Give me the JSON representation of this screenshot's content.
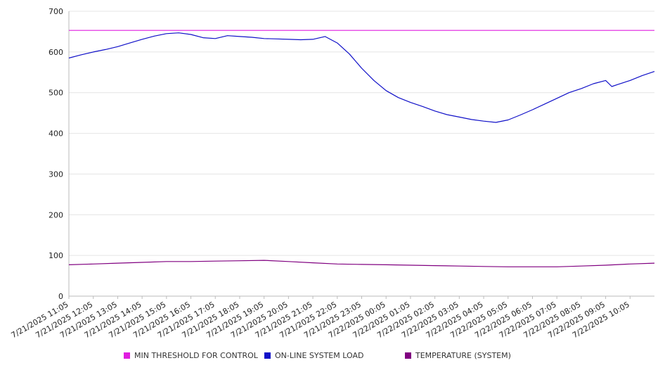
{
  "chart_data": {
    "type": "line",
    "ylim": [
      0,
      700
    ],
    "yticks": [
      0,
      100,
      200,
      300,
      400,
      500,
      600,
      700
    ],
    "grid": true,
    "legend_position": "bottom",
    "x_ticks": [
      "7/21/2025 11:05",
      "7/21/2025 12:05",
      "7/21/2025 13:05",
      "7/21/2025 14:05",
      "7/21/2025 15:05",
      "7/21/2025 16:05",
      "7/21/2025 17:05",
      "7/21/2025 18:05",
      "7/21/2025 19:05",
      "7/21/2025 20:05",
      "7/21/2025 21:05",
      "7/21/2025 22:05",
      "7/21/2025 23:05",
      "7/22/2025 00:05",
      "7/22/2025 01:05",
      "7/22/2025 02:05",
      "7/22/2025 03:05",
      "7/22/2025 04:05",
      "7/22/2025 05:05",
      "7/22/2025 06:05",
      "7/22/2025 07:05",
      "7/22/2025 08:05",
      "7/22/2025 09:05",
      "7/22/2025 10:05"
    ],
    "series": [
      {
        "name": "MIN THRESHOLD FOR CONTROL",
        "color": "#e01ee0",
        "points": [
          [
            "7/21/2025 11:05",
            653
          ],
          [
            "7/22/2025 11:05",
            653
          ]
        ]
      },
      {
        "name": "ON-LINE SYSTEM LOAD",
        "color": "#1010c8",
        "points": [
          [
            "7/21/2025 11:05",
            585
          ],
          [
            "7/21/2025 11:35",
            593
          ],
          [
            "7/21/2025 12:05",
            600
          ],
          [
            "7/21/2025 12:35",
            606
          ],
          [
            "7/21/2025 13:05",
            613
          ],
          [
            "7/21/2025 13:35",
            622
          ],
          [
            "7/21/2025 14:05",
            631
          ],
          [
            "7/21/2025 14:35",
            639
          ],
          [
            "7/21/2025 15:05",
            645
          ],
          [
            "7/21/2025 15:35",
            647
          ],
          [
            "7/21/2025 16:05",
            643
          ],
          [
            "7/21/2025 16:35",
            635
          ],
          [
            "7/21/2025 17:05",
            633
          ],
          [
            "7/21/2025 17:35",
            640
          ],
          [
            "7/21/2025 18:05",
            638
          ],
          [
            "7/21/2025 18:35",
            636
          ],
          [
            "7/21/2025 19:05",
            633
          ],
          [
            "7/21/2025 19:35",
            632
          ],
          [
            "7/21/2025 20:05",
            631
          ],
          [
            "7/21/2025 20:35",
            630
          ],
          [
            "7/21/2025 21:05",
            631
          ],
          [
            "7/21/2025 21:35",
            638
          ],
          [
            "7/21/2025 22:05",
            622
          ],
          [
            "7/21/2025 22:35",
            595
          ],
          [
            "7/21/2025 23:05",
            560
          ],
          [
            "7/21/2025 23:35",
            530
          ],
          [
            "7/22/2025 00:05",
            505
          ],
          [
            "7/22/2025 00:35",
            488
          ],
          [
            "7/22/2025 01:05",
            476
          ],
          [
            "7/22/2025 01:35",
            466
          ],
          [
            "7/22/2025 02:05",
            455
          ],
          [
            "7/22/2025 02:35",
            446
          ],
          [
            "7/22/2025 03:05",
            440
          ],
          [
            "7/22/2025 03:35",
            434
          ],
          [
            "7/22/2025 04:05",
            430
          ],
          [
            "7/22/2025 04:35",
            427
          ],
          [
            "7/22/2025 05:05",
            433
          ],
          [
            "7/22/2025 05:35",
            445
          ],
          [
            "7/22/2025 06:05",
            458
          ],
          [
            "7/22/2025 06:35",
            472
          ],
          [
            "7/22/2025 07:05",
            486
          ],
          [
            "7/22/2025 07:35",
            500
          ],
          [
            "7/22/2025 08:05",
            510
          ],
          [
            "7/22/2025 08:35",
            522
          ],
          [
            "7/22/2025 09:05",
            530
          ],
          [
            "7/22/2025 09:20",
            515
          ],
          [
            "7/22/2025 09:35",
            520
          ],
          [
            "7/22/2025 10:05",
            530
          ],
          [
            "7/22/2025 10:35",
            542
          ],
          [
            "7/22/2025 11:05",
            552
          ]
        ]
      },
      {
        "name": "TEMPERATURE (SYSTEM)",
        "color": "#800080",
        "points": [
          [
            "7/21/2025 11:05",
            77
          ],
          [
            "7/21/2025 12:05",
            79
          ],
          [
            "7/21/2025 13:05",
            81
          ],
          [
            "7/21/2025 14:05",
            83
          ],
          [
            "7/21/2025 15:05",
            85
          ],
          [
            "7/21/2025 16:05",
            85
          ],
          [
            "7/21/2025 17:05",
            86
          ],
          [
            "7/21/2025 18:05",
            87
          ],
          [
            "7/21/2025 19:05",
            88
          ],
          [
            "7/21/2025 20:05",
            85
          ],
          [
            "7/21/2025 21:05",
            82
          ],
          [
            "7/21/2025 22:05",
            79
          ],
          [
            "7/21/2025 23:05",
            78
          ],
          [
            "7/22/2025 00:05",
            77
          ],
          [
            "7/22/2025 01:05",
            76
          ],
          [
            "7/22/2025 02:05",
            75
          ],
          [
            "7/22/2025 03:05",
            74
          ],
          [
            "7/22/2025 04:05",
            73
          ],
          [
            "7/22/2025 05:05",
            72
          ],
          [
            "7/22/2025 06:05",
            72
          ],
          [
            "7/22/2025 07:05",
            72
          ],
          [
            "7/22/2025 08:05",
            74
          ],
          [
            "7/22/2025 09:05",
            76
          ],
          [
            "7/22/2025 10:05",
            79
          ],
          [
            "7/22/2025 11:05",
            81
          ]
        ]
      }
    ]
  }
}
